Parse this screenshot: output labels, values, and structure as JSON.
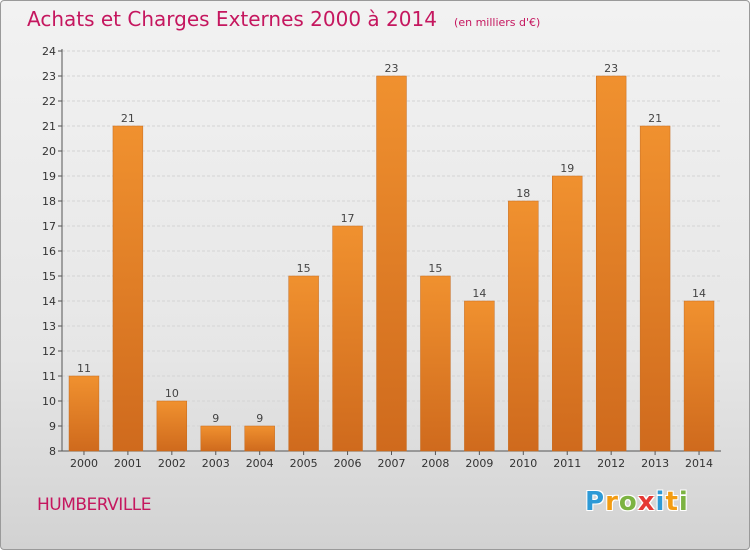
{
  "chart_data": {
    "type": "bar",
    "title": "Achats et Charges Externes 2000 à 2014",
    "subtitle": "(en milliers d'€)",
    "categories": [
      "2000",
      "2001",
      "2002",
      "2003",
      "2004",
      "2005",
      "2006",
      "2007",
      "2008",
      "2009",
      "2010",
      "2011",
      "2012",
      "2013",
      "2014"
    ],
    "values": [
      11,
      21,
      10,
      9,
      9,
      15,
      17,
      23,
      15,
      14,
      18,
      19,
      23,
      21,
      14
    ],
    "ylim": [
      8,
      24
    ],
    "yticks": [
      "8",
      "9",
      "10",
      "11",
      "12",
      "13",
      "14",
      "15",
      "16",
      "17",
      "18",
      "19",
      "20",
      "21",
      "22",
      "23",
      "24"
    ],
    "grid": true,
    "bar_color": "#f0912f",
    "bar_dark_color": "#cf6a1d",
    "title_color": "#c5175f"
  },
  "footer": {
    "location": "HUMBERVILLE",
    "brand": [
      {
        "char": "P",
        "color": "#2e9ad6"
      },
      {
        "char": "r",
        "color": "#f39c12"
      },
      {
        "char": "o",
        "color": "#7cb342"
      },
      {
        "char": "x",
        "color": "#e53935"
      },
      {
        "char": "i",
        "color": "#2e9ad6"
      },
      {
        "char": "t",
        "color": "#f39c12"
      },
      {
        "char": "i",
        "color": "#7cb342"
      }
    ]
  }
}
